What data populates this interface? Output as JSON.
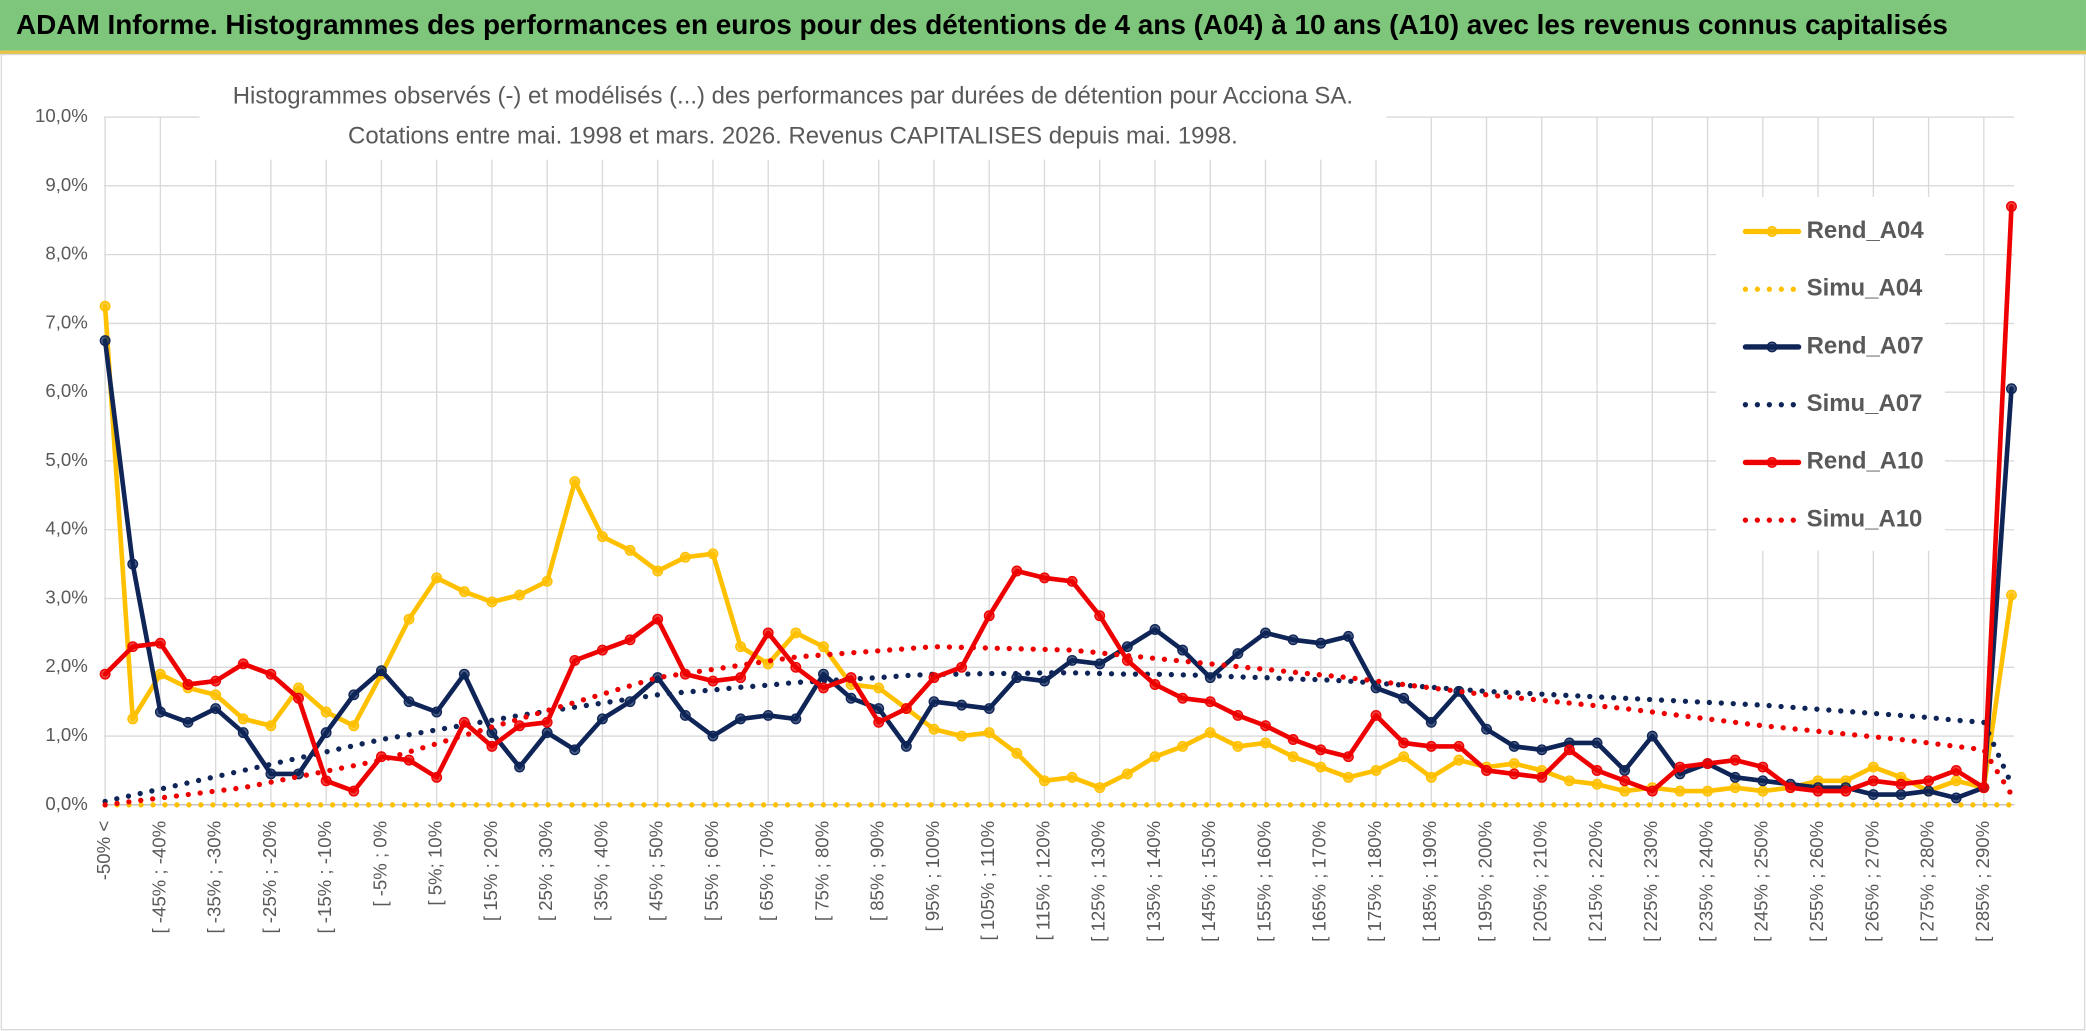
{
  "chart_data": {
    "type": "line",
    "title": "ADAM Informe. Histogrammes des performances en euros pour des détentions de 4 ans (A04) à 10 ans (A10) avec les revenus connus capitalisés",
    "subtitle": [
      "Histogrammes observés (-) et modélisés (...) des performances par durées de détention pour Acciona SA.",
      "Cotations entre mai. 1998 et mars. 2026. Revenus CAPITALISES depuis mai. 1998."
    ],
    "categories": [
      "-50% <",
      null,
      "[ -45% ; -40%",
      null,
      "[ -35% ; -30%",
      null,
      "[ -25% ; -20%",
      null,
      "[ -15% ; -10%",
      null,
      "[ -5% ; 0%",
      null,
      "[ 5%; 10%",
      null,
      "[ 15% ; 20%",
      null,
      "[ 25% ; 30%",
      null,
      "[ 35% ; 40%",
      null,
      "[ 45% ; 50%",
      null,
      "[ 55% ; 60%",
      null,
      "[ 65% ; 70%",
      null,
      "[ 75% ; 80%",
      null,
      "[ 85% ; 90%",
      null,
      "[ 95% ; 100%",
      null,
      "[ 105% ; 110%",
      null,
      "[ 115% ; 120%",
      null,
      "[ 125% ; 130%",
      null,
      "[ 135% ; 140%",
      null,
      "[ 145% ; 150%",
      null,
      "[ 155% ; 160%",
      null,
      "[ 165% ; 170%",
      null,
      "[ 175% ; 180%",
      null,
      "[ 185% ; 190%",
      null,
      "[ 195% ; 200%",
      null,
      "[ 205% ; 210%",
      null,
      "[ 215% ; 220%",
      null,
      "[ 225% ; 230%",
      null,
      "[ 235% ; 240%",
      null,
      "[ 245% ; 250%",
      null,
      "[ 255% ; 260%",
      null,
      "[ 265% ; 270%",
      null,
      "[ 275% ; 280%",
      null,
      "[ 285% ; 290%",
      null
    ],
    "series": [
      {
        "name": "Rend_A04",
        "color": "#ffc000",
        "style": "solid",
        "marker": true,
        "values": [
          7.25,
          1.25,
          1.9,
          1.7,
          1.6,
          1.25,
          1.15,
          1.7,
          1.35,
          1.15,
          1.9,
          2.7,
          3.3,
          3.1,
          2.95,
          3.05,
          3.25,
          4.7,
          3.9,
          3.7,
          3.4,
          3.6,
          3.65,
          2.3,
          2.05,
          2.5,
          2.3,
          1.75,
          1.7,
          1.4,
          1.1,
          1.0,
          1.05,
          0.75,
          0.35,
          0.4,
          0.25,
          0.45,
          0.7,
          0.85,
          1.05,
          0.85,
          0.9,
          0.7,
          0.55,
          0.4,
          0.5,
          0.7,
          0.4,
          0.65,
          0.55,
          0.6,
          0.5,
          0.35,
          0.3,
          0.2,
          0.25,
          0.2,
          0.2,
          0.25,
          0.2,
          0.25,
          0.35,
          0.35,
          0.55,
          0.4,
          0.2,
          0.35,
          0.25,
          3.05
        ]
      },
      {
        "name": "Simu_A04",
        "color": "#ffc000",
        "style": "dotted",
        "marker": false,
        "values": [
          0,
          0,
          0,
          0,
          0,
          0,
          0,
          0,
          0,
          0,
          0,
          0,
          0,
          0,
          0,
          0,
          0,
          0,
          0,
          0,
          0,
          0,
          0,
          0,
          0,
          0,
          0,
          0,
          0,
          0,
          0,
          0,
          0,
          0,
          0,
          0,
          0,
          0,
          0,
          0,
          0,
          0,
          0,
          0,
          0,
          0,
          0,
          0,
          0,
          0,
          0,
          0,
          0,
          0,
          0,
          0,
          0,
          0,
          0,
          0,
          0,
          0,
          0,
          0,
          0,
          0,
          0,
          0,
          0,
          0
        ]
      },
      {
        "name": "Rend_A07",
        "color": "#0f2557",
        "style": "solid",
        "marker": true,
        "values": [
          6.75,
          3.5,
          1.35,
          1.2,
          1.4,
          1.05,
          0.45,
          0.45,
          1.05,
          1.6,
          1.95,
          1.5,
          1.35,
          1.9,
          1.05,
          0.55,
          1.05,
          0.8,
          1.25,
          1.5,
          1.85,
          1.3,
          1.0,
          1.25,
          1.3,
          1.25,
          1.9,
          1.55,
          1.4,
          0.85,
          1.5,
          1.45,
          1.4,
          1.85,
          1.8,
          2.1,
          2.05,
          2.3,
          2.55,
          2.25,
          1.85,
          2.2,
          2.5,
          2.4,
          2.35,
          2.45,
          1.7,
          1.55,
          1.2,
          1.65,
          1.1,
          0.85,
          0.8,
          0.9,
          0.9,
          0.5,
          1.0,
          0.45,
          0.6,
          0.4,
          0.35,
          0.3,
          0.25,
          0.25,
          0.15,
          0.15,
          0.2,
          0.1,
          0.25,
          6.05
        ]
      },
      {
        "name": "Simu_A07",
        "color": "#0f2557",
        "style": "dotted",
        "marker": false,
        "values": [
          0.05,
          0.14,
          0.23,
          0.32,
          0.41,
          0.5,
          0.59,
          0.68,
          0.77,
          0.86,
          0.95,
          1.02,
          1.09,
          1.16,
          1.23,
          1.3,
          1.36,
          1.42,
          1.48,
          1.54,
          1.6,
          1.64,
          1.67,
          1.71,
          1.74,
          1.78,
          1.8,
          1.83,
          1.85,
          1.88,
          1.9,
          1.9,
          1.91,
          1.91,
          1.92,
          1.92,
          1.91,
          1.9,
          1.9,
          1.89,
          1.88,
          1.86,
          1.85,
          1.83,
          1.82,
          1.8,
          1.77,
          1.74,
          1.71,
          1.68,
          1.65,
          1.63,
          1.61,
          1.59,
          1.57,
          1.55,
          1.53,
          1.51,
          1.49,
          1.47,
          1.45,
          1.42,
          1.39,
          1.36,
          1.33,
          1.3,
          1.27,
          1.23,
          1.2,
          0.3
        ]
      },
      {
        "name": "Rend_A10",
        "color": "#ee0000",
        "style": "solid",
        "marker": true,
        "values": [
          1.9,
          2.3,
          2.35,
          1.75,
          1.8,
          2.05,
          1.9,
          1.55,
          0.35,
          0.2,
          0.7,
          0.65,
          0.4,
          1.2,
          0.85,
          1.15,
          1.2,
          2.1,
          2.25,
          2.4,
          2.7,
          1.9,
          1.8,
          1.85,
          2.5,
          2.0,
          1.7,
          1.85,
          1.2,
          1.4,
          1.85,
          2.0,
          2.75,
          3.4,
          3.3,
          3.25,
          2.75,
          2.1,
          1.75,
          1.55,
          1.5,
          1.3,
          1.15,
          0.95,
          0.8,
          0.7,
          1.3,
          0.9,
          0.85,
          0.85,
          0.5,
          0.45,
          0.4,
          0.8,
          0.5,
          0.35,
          0.2,
          0.55,
          0.6,
          0.65,
          0.55,
          0.25,
          0.2,
          0.2,
          0.35,
          0.3,
          0.35,
          0.5,
          0.25,
          8.7
        ]
      },
      {
        "name": "Simu_A10",
        "color": "#ee0000",
        "style": "dotted",
        "marker": false,
        "values": [
          0.0,
          0.05,
          0.1,
          0.15,
          0.2,
          0.25,
          0.33,
          0.41,
          0.49,
          0.57,
          0.65,
          0.77,
          0.89,
          1.01,
          1.13,
          1.25,
          1.37,
          1.49,
          1.61,
          1.73,
          1.85,
          1.91,
          1.97,
          2.03,
          2.09,
          2.15,
          2.18,
          2.21,
          2.24,
          2.27,
          2.3,
          2.29,
          2.28,
          2.27,
          2.26,
          2.25,
          2.21,
          2.17,
          2.13,
          2.09,
          2.05,
          2.01,
          1.97,
          1.93,
          1.89,
          1.85,
          1.8,
          1.75,
          1.7,
          1.65,
          1.6,
          1.56,
          1.52,
          1.48,
          1.44,
          1.4,
          1.35,
          1.3,
          1.25,
          1.2,
          1.15,
          1.11,
          1.07,
          1.03,
          0.99,
          0.95,
          0.9,
          0.85,
          0.8,
          0.15
        ]
      }
    ],
    "ylim": [
      0,
      10
    ],
    "yticks": [
      {
        "value": 0,
        "label": "0,0%"
      },
      {
        "value": 1,
        "label": "1,0%"
      },
      {
        "value": 2,
        "label": "2,0%"
      },
      {
        "value": 3,
        "label": "3,0%"
      },
      {
        "value": 4,
        "label": "4,0%"
      },
      {
        "value": 5,
        "label": "5,0%"
      },
      {
        "value": 6,
        "label": "6,0%"
      },
      {
        "value": 7,
        "label": "7,0%"
      },
      {
        "value": 8,
        "label": "8,0%"
      },
      {
        "value": 9,
        "label": "9,0%"
      },
      {
        "value": 10,
        "label": "10,0%"
      }
    ],
    "grid": true,
    "legend": "right"
  }
}
